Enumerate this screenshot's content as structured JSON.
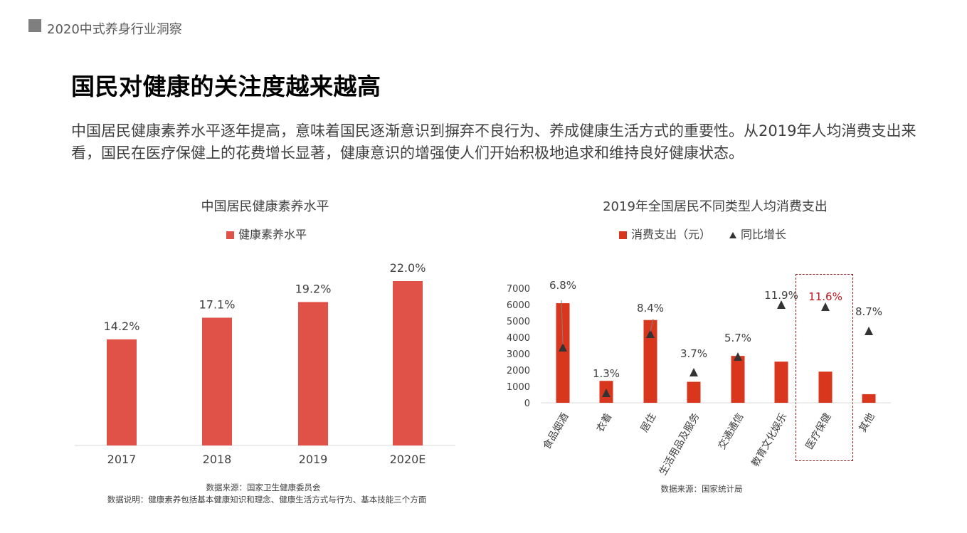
{
  "header": {
    "title": "2020中式养身行业洞察"
  },
  "page_title": "国民对健康的关注度越来越高",
  "lead_text": "中国居民健康素养水平逐年提高，意味着国民逐渐意识到摒弃不良行为、养成健康生活方式的重要性。从2019年人均消费支出来看，国民在医疗保健上的花费增长显著，健康意识的增强使人们开始积极地追求和维持良好健康状态。",
  "colors": {
    "bar_left": "#e05247",
    "bar_right": "#d9361e",
    "highlight": "#c0141c",
    "marker": "#333333"
  },
  "chart_data": [
    {
      "type": "bar",
      "title": "中国居民健康素养水平",
      "categories": [
        "2017",
        "2018",
        "2019",
        "2020E"
      ],
      "series": [
        {
          "name": "健康素养水平",
          "values": [
            14.2,
            17.1,
            19.2,
            22.0
          ],
          "labels": [
            "14.2%",
            "17.1%",
            "19.2%",
            "22.0%"
          ]
        }
      ],
      "ylim": [
        0,
        25
      ],
      "grid": false,
      "legend": "top"
    },
    {
      "type": "bar",
      "title": "2019年全国居民不同类型人均消费支出",
      "categories": [
        "食品烟酒",
        "衣着",
        "居住",
        "生活用品及服务",
        "交通通信",
        "教育文化娱乐",
        "医疗保健",
        "其他"
      ],
      "yticks": [
        "7000",
        "6000",
        "5000",
        "4000",
        "3000",
        "2000",
        "1000",
        "0"
      ],
      "ylim": [
        0,
        7000
      ],
      "series": [
        {
          "name": "消费支出（元）",
          "values": [
            6084,
            1338,
            5055,
            1281,
            2862,
            2513,
            1902,
            524
          ]
        },
        {
          "name": "同比增长",
          "values": [
            6.8,
            1.3,
            8.4,
            3.7,
            5.7,
            11.9,
            11.6,
            8.7
          ],
          "labels": [
            "6.8%",
            "1.3%",
            "8.4%",
            "3.7%",
            "5.7%",
            "11.9%",
            "11.6%",
            "8.7%"
          ]
        }
      ],
      "highlight_category": "医疗保健",
      "grid": false,
      "legend": "top"
    }
  ],
  "notes": {
    "left_source": "数据来源：国家卫生健康委员会",
    "left_desc": "数据说明：健康素养包括基本健康知识和理念、健康生活方式与行为、基本技能三个方面",
    "right_source": "数据来源：国家统计局"
  }
}
